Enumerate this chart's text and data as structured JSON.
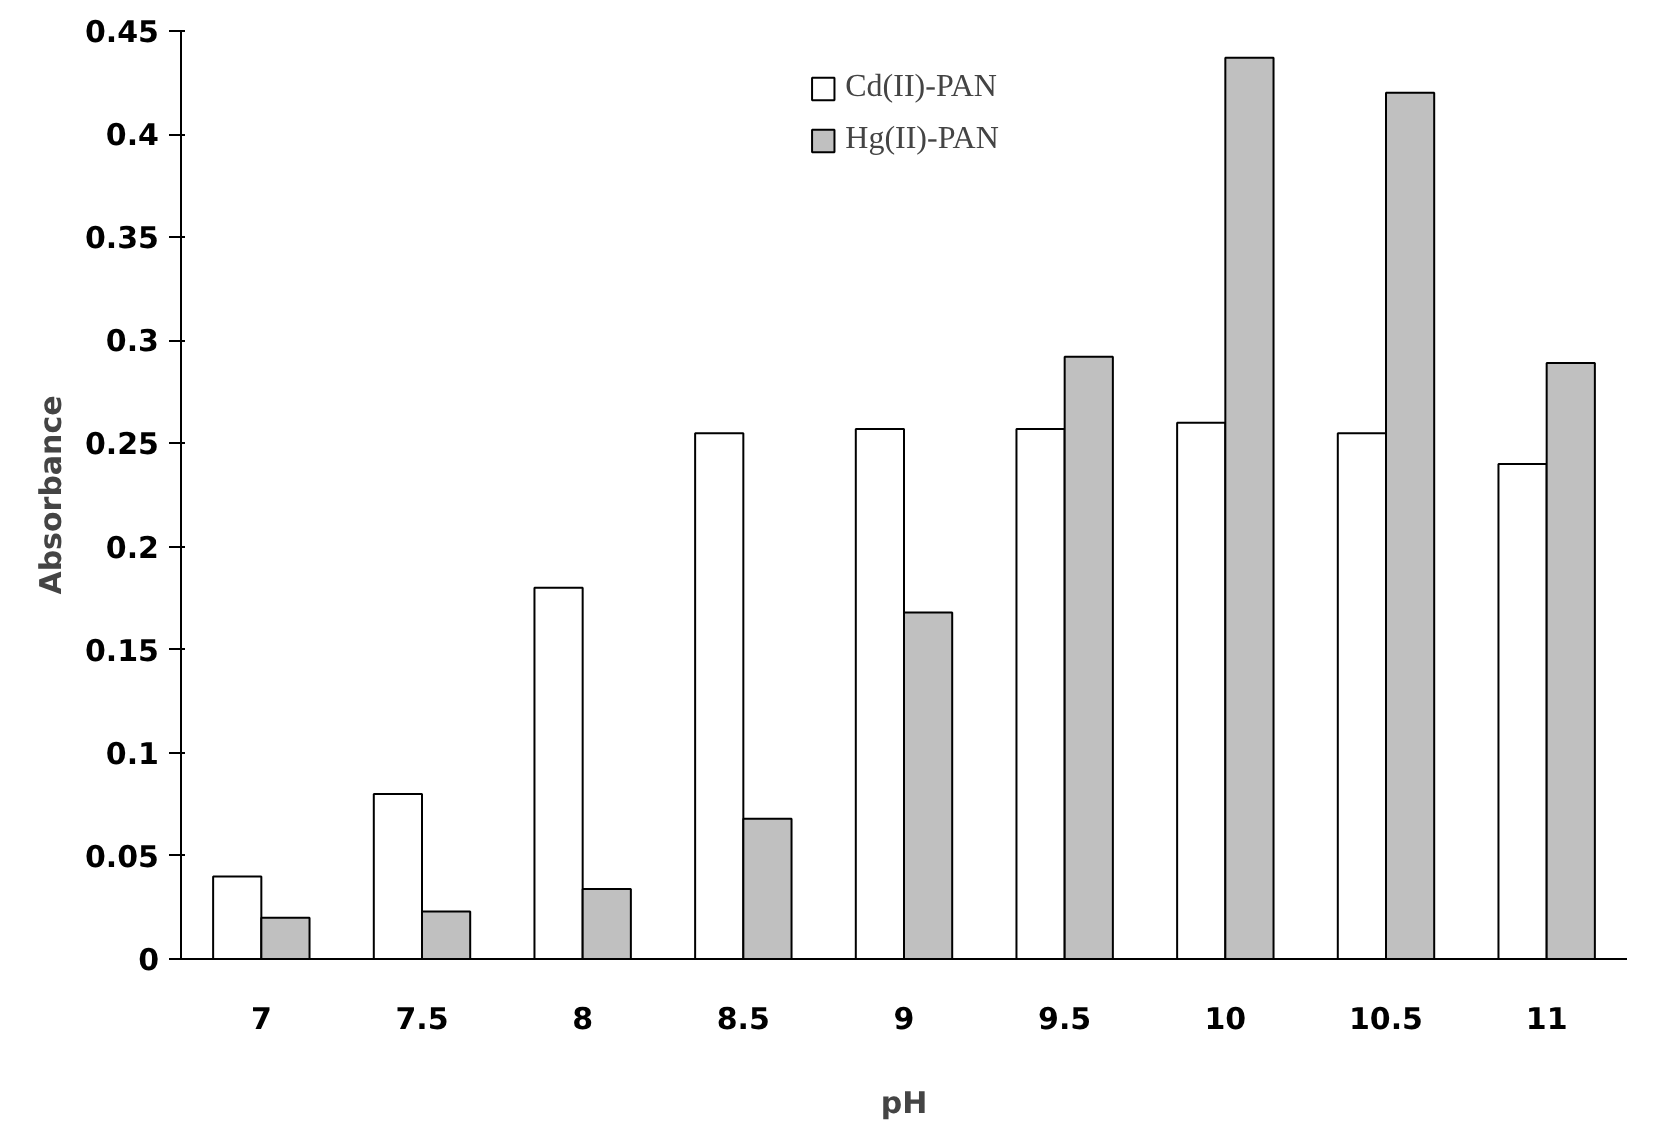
{
  "chart_data": {
    "type": "bar",
    "xlabel": "pH",
    "ylabel": "Absorbance",
    "categories": [
      "7",
      "7.5",
      "8",
      "8.5",
      "9",
      "9.5",
      "10",
      "10.5",
      "11"
    ],
    "series": [
      {
        "name": "Cd(II)-PAN",
        "color": "#ffffff",
        "values": [
          0.04,
          0.08,
          0.18,
          0.255,
          0.257,
          0.257,
          0.26,
          0.255,
          0.24
        ]
      },
      {
        "name": "Hg(II)-PAN",
        "color": "#c0c0c0",
        "values": [
          0.02,
          0.023,
          0.034,
          0.068,
          0.168,
          0.292,
          0.437,
          0.42,
          0.289
        ]
      }
    ],
    "ylim": [
      0,
      0.45
    ],
    "yticks": [
      {
        "value": 0,
        "label": "0"
      },
      {
        "value": 0.05,
        "label": "0.05"
      },
      {
        "value": 0.1,
        "label": "0.1"
      },
      {
        "value": 0.15,
        "label": "0.15"
      },
      {
        "value": 0.2,
        "label": "0.2"
      },
      {
        "value": 0.25,
        "label": "0.25"
      },
      {
        "value": 0.3,
        "label": "0.3"
      },
      {
        "value": 0.35,
        "label": "0.35"
      },
      {
        "value": 0.4,
        "label": "0.4"
      },
      {
        "value": 0.45,
        "label": "0.45"
      }
    ],
    "grid": false,
    "legend": "top"
  }
}
